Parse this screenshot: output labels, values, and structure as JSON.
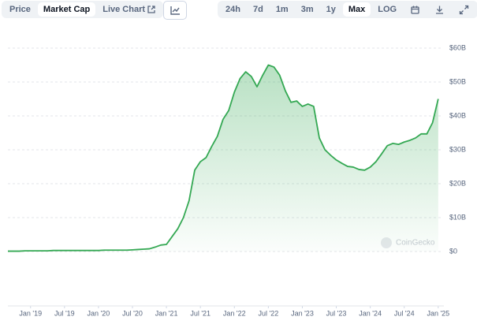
{
  "toolbar": {
    "tabs": [
      "Price",
      "Market Cap",
      "Live Chart"
    ],
    "active_tab": 1,
    "ranges": [
      "24h",
      "7d",
      "1m",
      "3m",
      "1y",
      "Max",
      "LOG"
    ],
    "active_range": 5
  },
  "chart_data": {
    "type": "area",
    "watermark": "CoinGecko",
    "x": [
      "2018-09",
      "2018-10",
      "2018-11",
      "2018-12",
      "2019-01",
      "2019-02",
      "2019-03",
      "2019-04",
      "2019-05",
      "2019-06",
      "2019-07",
      "2019-08",
      "2019-09",
      "2019-10",
      "2019-11",
      "2019-12",
      "2020-01",
      "2020-02",
      "2020-03",
      "2020-04",
      "2020-05",
      "2020-06",
      "2020-07",
      "2020-08",
      "2020-09",
      "2020-10",
      "2020-11",
      "2020-12",
      "2021-01",
      "2021-02",
      "2021-03",
      "2021-04",
      "2021-05",
      "2021-06",
      "2021-07",
      "2021-08",
      "2021-09",
      "2021-10",
      "2021-11",
      "2021-12",
      "2022-01",
      "2022-02",
      "2022-03",
      "2022-04",
      "2022-05",
      "2022-06",
      "2022-07",
      "2022-08",
      "2022-09",
      "2022-10",
      "2022-11",
      "2022-12",
      "2023-01",
      "2023-02",
      "2023-03",
      "2023-04",
      "2023-05",
      "2023-06",
      "2023-07",
      "2023-08",
      "2023-09",
      "2023-10",
      "2023-11",
      "2023-12",
      "2024-01",
      "2024-02",
      "2024-03",
      "2024-04",
      "2024-05",
      "2024-06",
      "2024-07",
      "2024-08",
      "2024-09",
      "2024-10",
      "2024-11",
      "2024-12",
      "2025-01"
    ],
    "series": [
      {
        "name": "Market Cap",
        "color": "#34a853",
        "values": [
          0.1,
          0.1,
          0.1,
          0.2,
          0.2,
          0.2,
          0.2,
          0.2,
          0.3,
          0.3,
          0.3,
          0.3,
          0.3,
          0.3,
          0.3,
          0.3,
          0.3,
          0.4,
          0.4,
          0.4,
          0.4,
          0.4,
          0.5,
          0.6,
          0.7,
          0.8,
          1.3,
          1.9,
          2.1,
          4.4,
          6.7,
          10,
          15,
          24,
          26.5,
          27.7,
          31,
          34,
          39,
          41.6,
          47,
          51,
          53,
          51.6,
          48.6,
          52,
          55,
          54.4,
          52,
          47.4,
          44,
          44.4,
          42.8,
          43.5,
          42.8,
          33.5,
          30,
          28.4,
          27,
          26,
          25.1,
          24.9,
          24.2,
          24,
          24.9,
          26.5,
          28.8,
          31.2,
          31.9,
          31.6,
          32.3,
          32.8,
          33.5,
          34.7,
          34.7,
          38,
          45
        ]
      }
    ],
    "xlim": [
      "2018-09",
      "2025-02"
    ],
    "xticks": [
      {
        "value": "2019-01",
        "label": "Jan '19"
      },
      {
        "value": "2019-07",
        "label": "Jul '19"
      },
      {
        "value": "2020-01",
        "label": "Jan '20"
      },
      {
        "value": "2020-07",
        "label": "Jul '20"
      },
      {
        "value": "2021-01",
        "label": "Jan '21"
      },
      {
        "value": "2021-07",
        "label": "Jul '21"
      },
      {
        "value": "2022-01",
        "label": "Jan '22"
      },
      {
        "value": "2022-07",
        "label": "Jul '22"
      },
      {
        "value": "2023-01",
        "label": "Jan '23"
      },
      {
        "value": "2023-07",
        "label": "Jul '23"
      },
      {
        "value": "2024-01",
        "label": "Jan '24"
      },
      {
        "value": "2024-07",
        "label": "Jul '24"
      },
      {
        "value": "2025-01",
        "label": "Jan '25"
      }
    ],
    "ylim": [
      0,
      60
    ],
    "yticks": [
      {
        "value": 0,
        "label": "$0"
      },
      {
        "value": 10,
        "label": "$10B"
      },
      {
        "value": 20,
        "label": "$20B"
      },
      {
        "value": 30,
        "label": "$30B"
      },
      {
        "value": 40,
        "label": "$40B"
      },
      {
        "value": 50,
        "label": "$50B"
      },
      {
        "value": 60,
        "label": "$60B"
      }
    ],
    "grid": true
  }
}
